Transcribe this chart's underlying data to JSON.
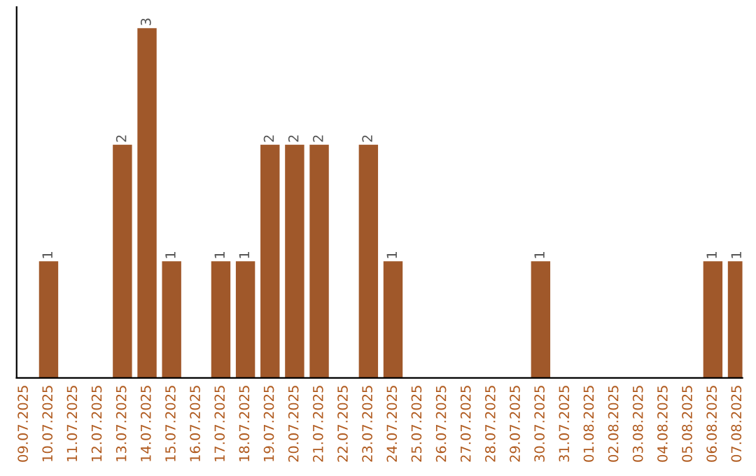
{
  "chart_data": {
    "type": "bar",
    "categories": [
      "09.07.2025",
      "10.07.2025",
      "11.07.2025",
      "12.07.2025",
      "13.07.2025",
      "14.07.2025",
      "15.07.2025",
      "16.07.2025",
      "17.07.2025",
      "18.07.2025",
      "19.07.2025",
      "20.07.2025",
      "21.07.2025",
      "22.07.2025",
      "23.07.2025",
      "24.07.2025",
      "25.07.2025",
      "26.07.2025",
      "27.07.2025",
      "28.07.2025",
      "29.07.2025",
      "30.07.2025",
      "31.07.2025",
      "01.08.2025",
      "02.08.2025",
      "03.08.2025",
      "04.08.2025",
      "05.08.2025",
      "06.08.2025",
      "07.08.2025"
    ],
    "series": [
      {
        "color": "#a0582a",
        "values": [
          0,
          1,
          0,
          0,
          2,
          3,
          1,
          0,
          1,
          1,
          2,
          2,
          2,
          0,
          2,
          1,
          0,
          0,
          0,
          0,
          0,
          1,
          0,
          0,
          0,
          0,
          0,
          0,
          1,
          1
        ],
        "value_labels": [
          null,
          "1",
          null,
          null,
          "2",
          "3",
          "1",
          null,
          "1",
          "1",
          "2",
          "2",
          "2",
          null,
          "2",
          "1",
          null,
          null,
          null,
          null,
          null,
          "1",
          null,
          null,
          null,
          null,
          null,
          null,
          "1",
          "1"
        ]
      }
    ],
    "tick_labels": "x",
    "grid": false,
    "legend": false
  }
}
